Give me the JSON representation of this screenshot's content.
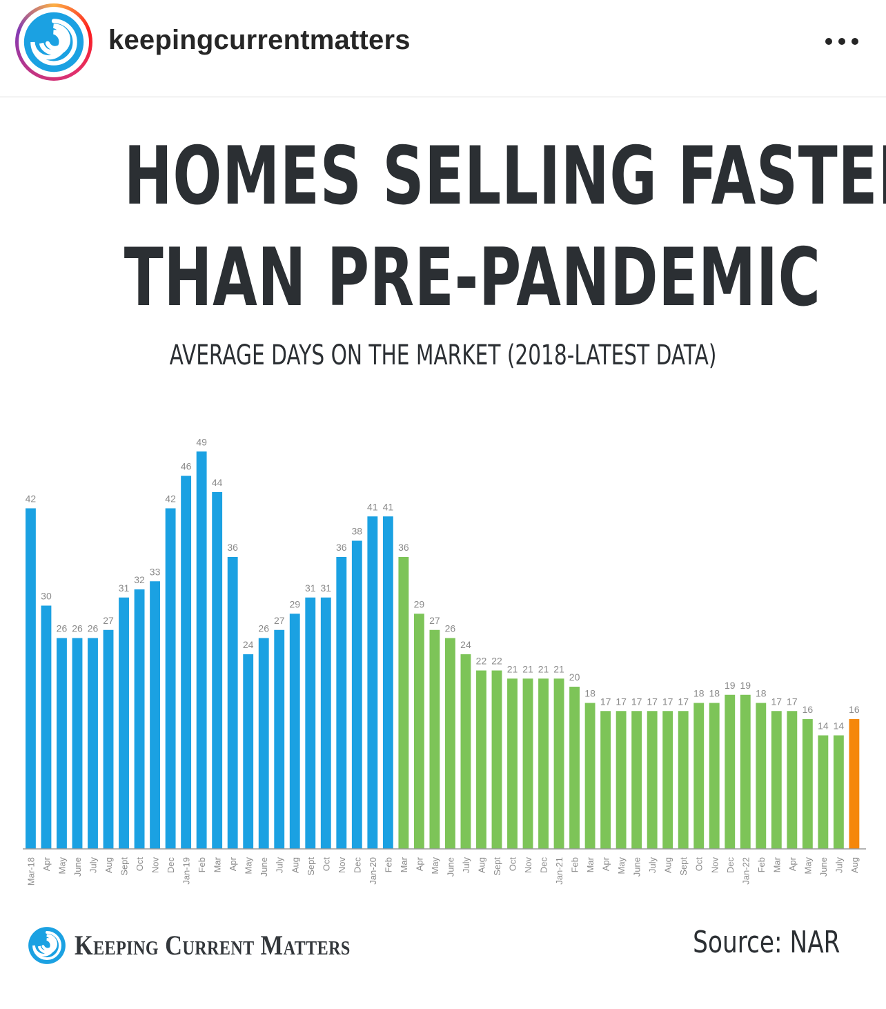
{
  "header": {
    "username": "keepingcurrentmatters",
    "avatar_icon": "swirl-logo-icon",
    "more_icon": "more-options-icon"
  },
  "infographic": {
    "title_line1": "HOMES SELLING FASTER",
    "title_line2": "THAN PRE-PANDEMIC",
    "subtitle": "AVERAGE DAYS ON THE MARKET (2018-LATEST DATA)",
    "brand": "Keeping Current Matters",
    "source": "Source: NAR"
  },
  "colors": {
    "pre_pandemic": "#1ba1e2",
    "pandemic": "#7dc458",
    "latest": "#f5870a",
    "text": "#2b2f33",
    "label": "#8a8a8a"
  },
  "chart_data": {
    "type": "bar",
    "title": "",
    "xlabel": "",
    "ylabel": "",
    "ylim": [
      0,
      50
    ],
    "grid": false,
    "categories": [
      "Mar-18",
      "Apr",
      "May",
      "June",
      "July",
      "Aug",
      "Sept",
      "Oct",
      "Nov",
      "Dec",
      "Jan-19",
      "Feb",
      "Mar",
      "Apr",
      "May",
      "June",
      "July",
      "Aug",
      "Sept",
      "Oct",
      "Nov",
      "Dec",
      "Jan-20",
      "Feb",
      "Mar",
      "Apr",
      "May",
      "June",
      "July",
      "Aug",
      "Sept",
      "Oct",
      "Nov",
      "Dec",
      "Jan-21",
      "Feb",
      "Mar",
      "Apr",
      "May",
      "June",
      "July",
      "Aug",
      "Sept",
      "Oct",
      "Nov",
      "Dec",
      "Jan-22",
      "Feb",
      "Mar",
      "Apr",
      "May",
      "June",
      "July",
      "Aug"
    ],
    "values": [
      42,
      30,
      26,
      26,
      26,
      27,
      31,
      32,
      33,
      42,
      46,
      49,
      44,
      36,
      24,
      26,
      27,
      29,
      31,
      31,
      36,
      38,
      41,
      41,
      36,
      29,
      27,
      26,
      24,
      22,
      22,
      21,
      21,
      21,
      21,
      20,
      18,
      17,
      17,
      17,
      17,
      17,
      17,
      18,
      18,
      19,
      19,
      18,
      17,
      17,
      16,
      14,
      14,
      16
    ],
    "color_groups": [
      {
        "name": "pre_pandemic",
        "from": 0,
        "to": 23
      },
      {
        "name": "pandemic",
        "from": 24,
        "to": 52
      },
      {
        "name": "latest",
        "from": 53,
        "to": 53
      }
    ]
  }
}
